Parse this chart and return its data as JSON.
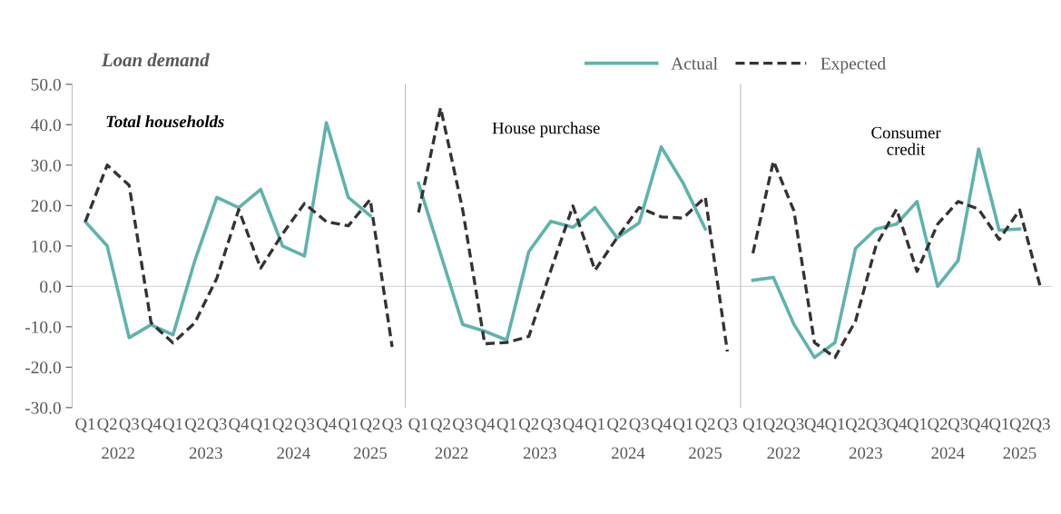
{
  "chart_data": [
    {
      "type": "line",
      "title": "Loan demand",
      "subtitle": "Total households",
      "categories": [
        "Q1",
        "Q2",
        "Q3",
        "Q4",
        "Q1",
        "Q2",
        "Q3",
        "Q4",
        "Q1",
        "Q2",
        "Q3",
        "Q4",
        "Q1",
        "Q2",
        "Q3"
      ],
      "series": [
        {
          "name": "Actual",
          "color": "#5fb3ad",
          "line_style": "solid",
          "values": [
            16,
            10,
            -12.7,
            -9.5,
            -12,
            6.4,
            22,
            19.5,
            24,
            10,
            7.5,
            40.5,
            22,
            17.5,
            null
          ]
        },
        {
          "name": "Expected",
          "color": "#333333",
          "line_style": "dashed",
          "values": [
            16,
            30,
            25,
            -9,
            -14,
            -9,
            2,
            19,
            4.5,
            13,
            20.5,
            16,
            15,
            21.5,
            -15
          ]
        }
      ],
      "ylim": [
        -30,
        50
      ],
      "yticks": [
        {
          "value": -30,
          "label": "-30.0"
        },
        {
          "value": -20,
          "label": "-20.0"
        },
        {
          "value": -10,
          "label": "-10.0"
        },
        {
          "value": 0,
          "label": "0.0"
        },
        {
          "value": 10,
          "label": "10.0"
        },
        {
          "value": 20,
          "label": "20.0"
        },
        {
          "value": 30,
          "label": "30.0"
        },
        {
          "value": 40,
          "label": "40.0"
        },
        {
          "value": 50,
          "label": "50.0"
        }
      ],
      "ref_lines": [
        {
          "axis": "y",
          "value": 0,
          "color": "#d9d9d9"
        }
      ],
      "annotations": [
        "2022",
        "2023",
        "2024",
        "2025"
      ],
      "grid": false,
      "legend": "top right"
    },
    {
      "type": "line",
      "subtitle": "House purchase",
      "categories": [
        "Q1",
        "Q2",
        "Q3",
        "Q4",
        "Q1",
        "Q2",
        "Q3",
        "Q4",
        "Q1",
        "Q2",
        "Q3",
        "Q4",
        "Q1",
        "Q2",
        "Q3"
      ],
      "series": [
        {
          "color": "#5fb3ad",
          "line_style": "solid",
          "values": [
            25.5,
            8,
            -9.4,
            -11.1,
            -13.3,
            8.6,
            16.1,
            14.6,
            19.5,
            12,
            15.7,
            34.5,
            25.5,
            14.2,
            null
          ]
        },
        {
          "color": "#333333",
          "line_style": "dashed",
          "values": [
            18.3,
            44.2,
            19,
            -14.2,
            -13.9,
            -12.4,
            4,
            19.9,
            4,
            12,
            19.5,
            17.2,
            16.9,
            22.1,
            -16.1
          ]
        }
      ],
      "ylim": [
        -30,
        50
      ],
      "tick_labels": "x",
      "ref_lines": [
        {
          "axis": "y",
          "value": 0,
          "color": "#d9d9d9"
        }
      ],
      "annotations": [
        "2022",
        "2023",
        "2024",
        "2025"
      ],
      "grid": false
    },
    {
      "type": "line",
      "subtitle": "Consumer\ncredit",
      "categories": [
        "Q1",
        "Q2",
        "Q3",
        "Q4",
        "Q1",
        "Q2",
        "Q3",
        "Q4",
        "Q1",
        "Q2",
        "Q3",
        "Q4",
        "Q1",
        "Q2",
        "Q3"
      ],
      "series": [
        {
          "color": "#5fb3ad",
          "line_style": "solid",
          "values": [
            1.5,
            2.2,
            -9.4,
            -17.6,
            -13.9,
            9.4,
            14.2,
            15.4,
            21,
            0,
            6.4,
            34,
            13.9,
            14.2,
            null
          ]
        },
        {
          "color": "#333333",
          "line_style": "dashed",
          "values": [
            8.2,
            31,
            18.7,
            -13.9,
            -17.6,
            -8.6,
            10.1,
            19.1,
            3.7,
            15.4,
            21,
            19.1,
            11.6,
            18.9,
            0
          ]
        }
      ],
      "ylim": [
        -30,
        50
      ],
      "tick_labels": "x",
      "ref_lines": [
        {
          "axis": "y",
          "value": 0,
          "color": "#d9d9d9"
        }
      ],
      "annotations": [
        "2022",
        "2023",
        "2024",
        "2025"
      ],
      "grid": false,
      "legend": false
    }
  ]
}
